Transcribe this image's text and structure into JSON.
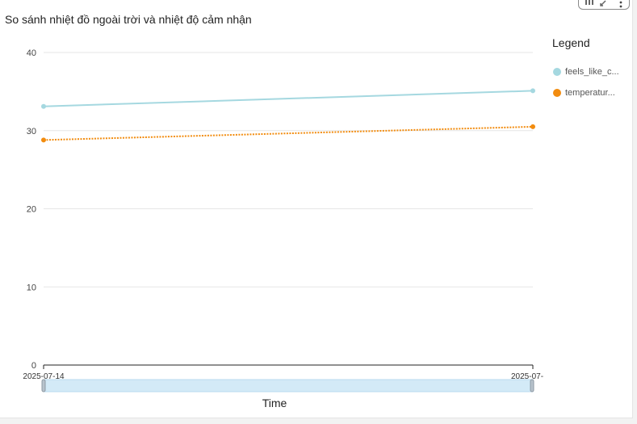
{
  "visual": {
    "title": "So sánh nhiệt đồ ngoài trời và nhiệt độ cảm nhận"
  },
  "toolbar": {
    "icons": [
      "focus-icon",
      "expand-icon",
      "more-options-icon"
    ]
  },
  "legend": {
    "title": "Legend",
    "items": [
      {
        "label": "feels_like_c...",
        "color": "#a5d8e0"
      },
      {
        "label": "temperatur...",
        "color": "#f28c0f"
      }
    ]
  },
  "chart_data": {
    "type": "line",
    "title": "So sánh nhiệt đồ ngoài trời và nhiệt độ cảm nhận",
    "xlabel": "Time",
    "ylabel": "",
    "x": [
      "2025-07-14",
      "2025-07-"
    ],
    "ylim": [
      0,
      40
    ],
    "yticks": [
      0,
      10,
      20,
      30,
      40
    ],
    "grid": true,
    "legend_position": "right",
    "series": [
      {
        "name": "feels_like_c...",
        "values": [
          33.1,
          35.1
        ],
        "color": "#a5d8e0",
        "style": "solid"
      },
      {
        "name": "temperatur...",
        "values": [
          28.8,
          30.5
        ],
        "color": "#f28c0f",
        "style": "dotted"
      }
    ]
  }
}
